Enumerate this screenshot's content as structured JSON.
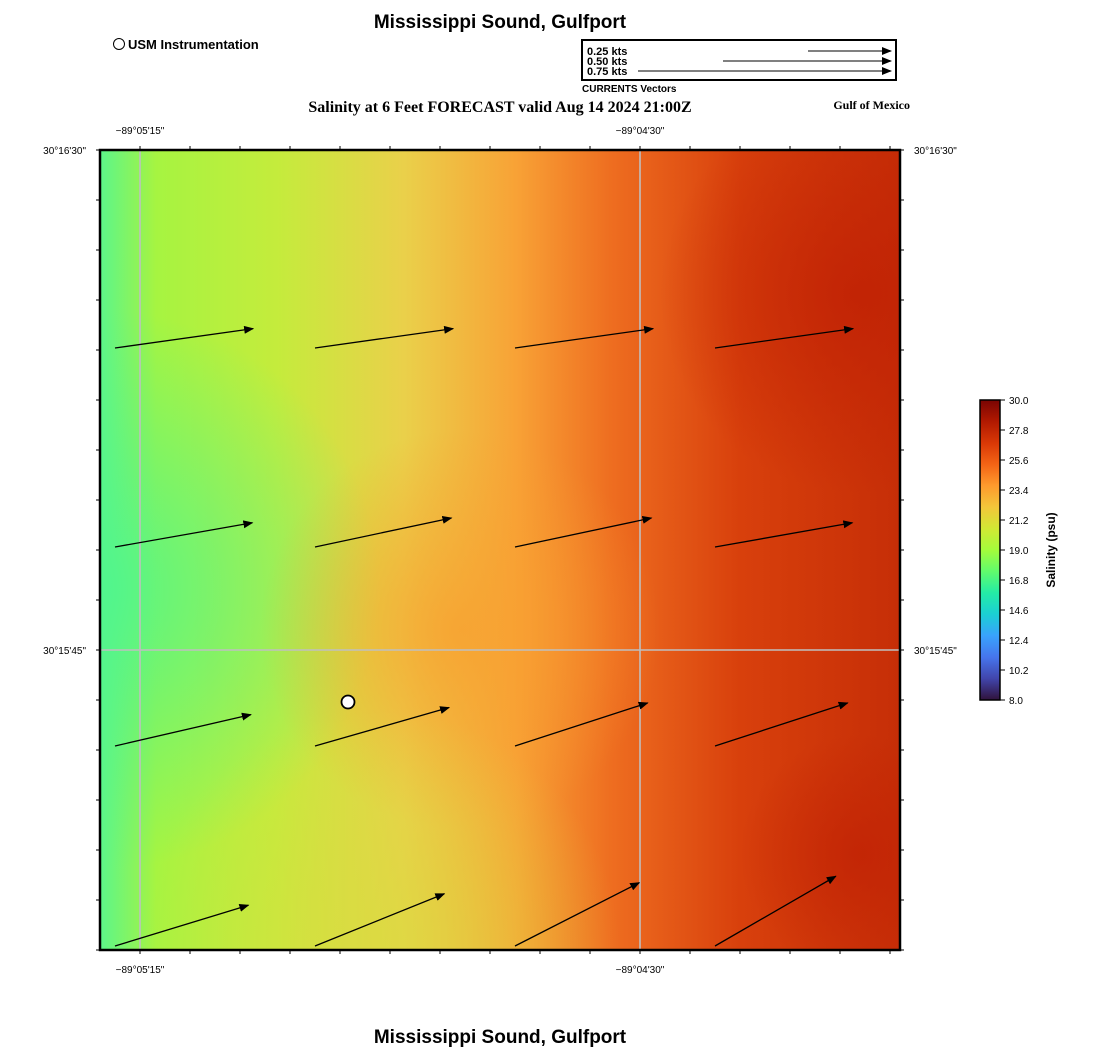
{
  "header": {
    "title": "Mississippi Sound, Gulfport",
    "instrument_legend": "USM Instrumentation",
    "subtitle": "Salinity at 6 Feet FORECAST valid Aug 14 2024 21:00Z",
    "region": "Gulf of Mexico"
  },
  "footer": {
    "title": "Mississippi Sound, Gulfport"
  },
  "vector_legend": {
    "entries": [
      {
        "label": "0.25 kts",
        "speed": 0.25
      },
      {
        "label": "0.50 kts",
        "speed": 0.5
      },
      {
        "label": "0.75 kts",
        "speed": 0.75
      }
    ],
    "caption": "CURRENTS Vectors"
  },
  "axes": {
    "lon_ticks": [
      {
        "label": "−89°05'15\"",
        "lon": -89.0875
      },
      {
        "label": "−89°04'30\"",
        "lon": -89.075
      }
    ],
    "lat_ticks": [
      {
        "label": "30°16'30\"",
        "lat": 30.275
      },
      {
        "label": "30°15'45\"",
        "lat": 30.2625
      }
    ]
  },
  "colorbar": {
    "label": "Salinity (psu)",
    "min": 8.0,
    "max": 30.0,
    "ticks": [
      "30.0",
      "27.8",
      "25.6",
      "23.4",
      "21.2",
      "19.0",
      "16.8",
      "14.6",
      "12.4",
      "10.2",
      "8.0"
    ],
    "colors": [
      "#30123b",
      "#4145ab",
      "#4675ed",
      "#39a2fc",
      "#1bcfd4",
      "#24eca6",
      "#61fc6c",
      "#a4fc3b",
      "#d1e834",
      "#f3c63a",
      "#fe9b2d",
      "#f36315",
      "#d93806",
      "#b11901",
      "#7a0402"
    ]
  },
  "map": {
    "colors": {
      "gridline": "#bfbfbf",
      "marker_fill": "#ffffff"
    },
    "salinity_field_note_free": true,
    "vectors": [
      {
        "row": 1,
        "col": 1,
        "direction_deg": 8
      },
      {
        "row": 1,
        "col": 2,
        "direction_deg": 8
      },
      {
        "row": 1,
        "col": 3,
        "direction_deg": 8
      },
      {
        "row": 1,
        "col": 4,
        "direction_deg": 8
      },
      {
        "row": 2,
        "col": 1,
        "direction_deg": 10
      },
      {
        "row": 2,
        "col": 2,
        "direction_deg": 12
      },
      {
        "row": 2,
        "col": 3,
        "direction_deg": 12
      },
      {
        "row": 2,
        "col": 4,
        "direction_deg": 10
      },
      {
        "row": 3,
        "col": 1,
        "direction_deg": 13
      },
      {
        "row": 3,
        "col": 2,
        "direction_deg": 16
      },
      {
        "row": 3,
        "col": 3,
        "direction_deg": 18
      },
      {
        "row": 3,
        "col": 4,
        "direction_deg": 18
      },
      {
        "row": 4,
        "col": 1,
        "direction_deg": 17
      },
      {
        "row": 4,
        "col": 2,
        "direction_deg": 22
      },
      {
        "row": 4,
        "col": 3,
        "direction_deg": 27
      },
      {
        "row": 4,
        "col": 4,
        "direction_deg": 30
      }
    ],
    "station": {
      "name": "USM Instrumentation",
      "lon": -89.0823,
      "lat": 30.2612
    }
  }
}
